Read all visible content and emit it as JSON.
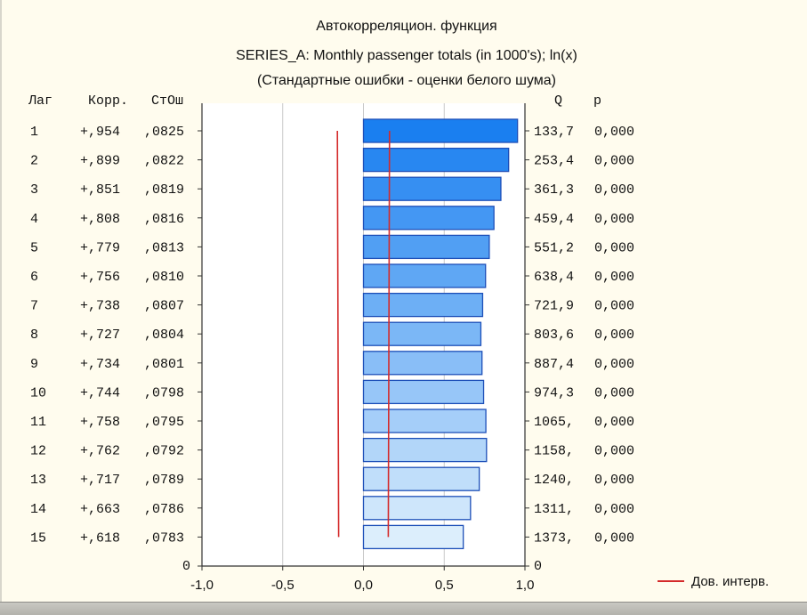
{
  "chart_data": {
    "type": "bar",
    "orientation": "horizontal",
    "title": "Автокорреляцион. функция",
    "subtitle": "SERIES_A: Monthly passenger totals (in 1000's); ln(x)",
    "subtitle2": "(Стандартные ошибки - оценки белого шума)",
    "headers": {
      "lag": "Лаг",
      "corr": "Корр.",
      "se": "СтОш",
      "q": "Q",
      "p": "p"
    },
    "rows": [
      {
        "lag": "1",
        "corr_text": "+,954",
        "se_text": ",0825",
        "q_text": "133,7",
        "p_text": "0,000",
        "value": 0.954,
        "se": 0.0825
      },
      {
        "lag": "2",
        "corr_text": "+,899",
        "se_text": ",0822",
        "q_text": "253,4",
        "p_text": "0,000",
        "value": 0.899,
        "se": 0.0822
      },
      {
        "lag": "3",
        "corr_text": "+,851",
        "se_text": ",0819",
        "q_text": "361,3",
        "p_text": "0,000",
        "value": 0.851,
        "se": 0.0819
      },
      {
        "lag": "4",
        "corr_text": "+,808",
        "se_text": ",0816",
        "q_text": "459,4",
        "p_text": "0,000",
        "value": 0.808,
        "se": 0.0816
      },
      {
        "lag": "5",
        "corr_text": "+,779",
        "se_text": ",0813",
        "q_text": "551,2",
        "p_text": "0,000",
        "value": 0.779,
        "se": 0.0813
      },
      {
        "lag": "6",
        "corr_text": "+,756",
        "se_text": ",0810",
        "q_text": "638,4",
        "p_text": "0,000",
        "value": 0.756,
        "se": 0.081
      },
      {
        "lag": "7",
        "corr_text": "+,738",
        "se_text": ",0807",
        "q_text": "721,9",
        "p_text": "0,000",
        "value": 0.738,
        "se": 0.0807
      },
      {
        "lag": "8",
        "corr_text": "+,727",
        "se_text": ",0804",
        "q_text": "803,6",
        "p_text": "0,000",
        "value": 0.727,
        "se": 0.0804
      },
      {
        "lag": "9",
        "corr_text": "+,734",
        "se_text": ",0801",
        "q_text": "887,4",
        "p_text": "0,000",
        "value": 0.734,
        "se": 0.0801
      },
      {
        "lag": "10",
        "corr_text": "+,744",
        "se_text": ",0798",
        "q_text": "974,3",
        "p_text": "0,000",
        "value": 0.744,
        "se": 0.0798
      },
      {
        "lag": "11",
        "corr_text": "+,758",
        "se_text": ",0795",
        "q_text": "1065,",
        "p_text": "0,000",
        "value": 0.758,
        "se": 0.0795
      },
      {
        "lag": "12",
        "corr_text": "+,762",
        "se_text": ",0792",
        "q_text": "1158,",
        "p_text": "0,000",
        "value": 0.762,
        "se": 0.0792
      },
      {
        "lag": "13",
        "corr_text": "+,717",
        "se_text": ",0789",
        "q_text": "1240,",
        "p_text": "0,000",
        "value": 0.717,
        "se": 0.0789
      },
      {
        "lag": "14",
        "corr_text": "+,663",
        "se_text": ",0786",
        "q_text": "1311,",
        "p_text": "0,000",
        "value": 0.663,
        "se": 0.0786
      },
      {
        "lag": "15",
        "corr_text": "+,618",
        "se_text": ",0783",
        "q_text": "1373,",
        "p_text": "0,000",
        "value": 0.618,
        "se": 0.0783
      }
    ],
    "xlim": [
      -1.0,
      1.0
    ],
    "x_ticks": [
      "-1,0",
      "-0,5",
      "0,0",
      "0,5",
      "1,0"
    ],
    "y_corner_labels": [
      "0",
      "0"
    ],
    "grid": "vertical",
    "confidence_multiplier": 1.96,
    "legend": {
      "label": "Дов. интерв.",
      "placement": "bottom-right"
    },
    "colors": {
      "bar_dark": "#1a7ff0",
      "bar_light": "#dceefc",
      "bar_edge": "#1d4fb8",
      "ci_line": "#d42a2a",
      "grid": "#c9c9c9",
      "axis": "#333333"
    }
  }
}
